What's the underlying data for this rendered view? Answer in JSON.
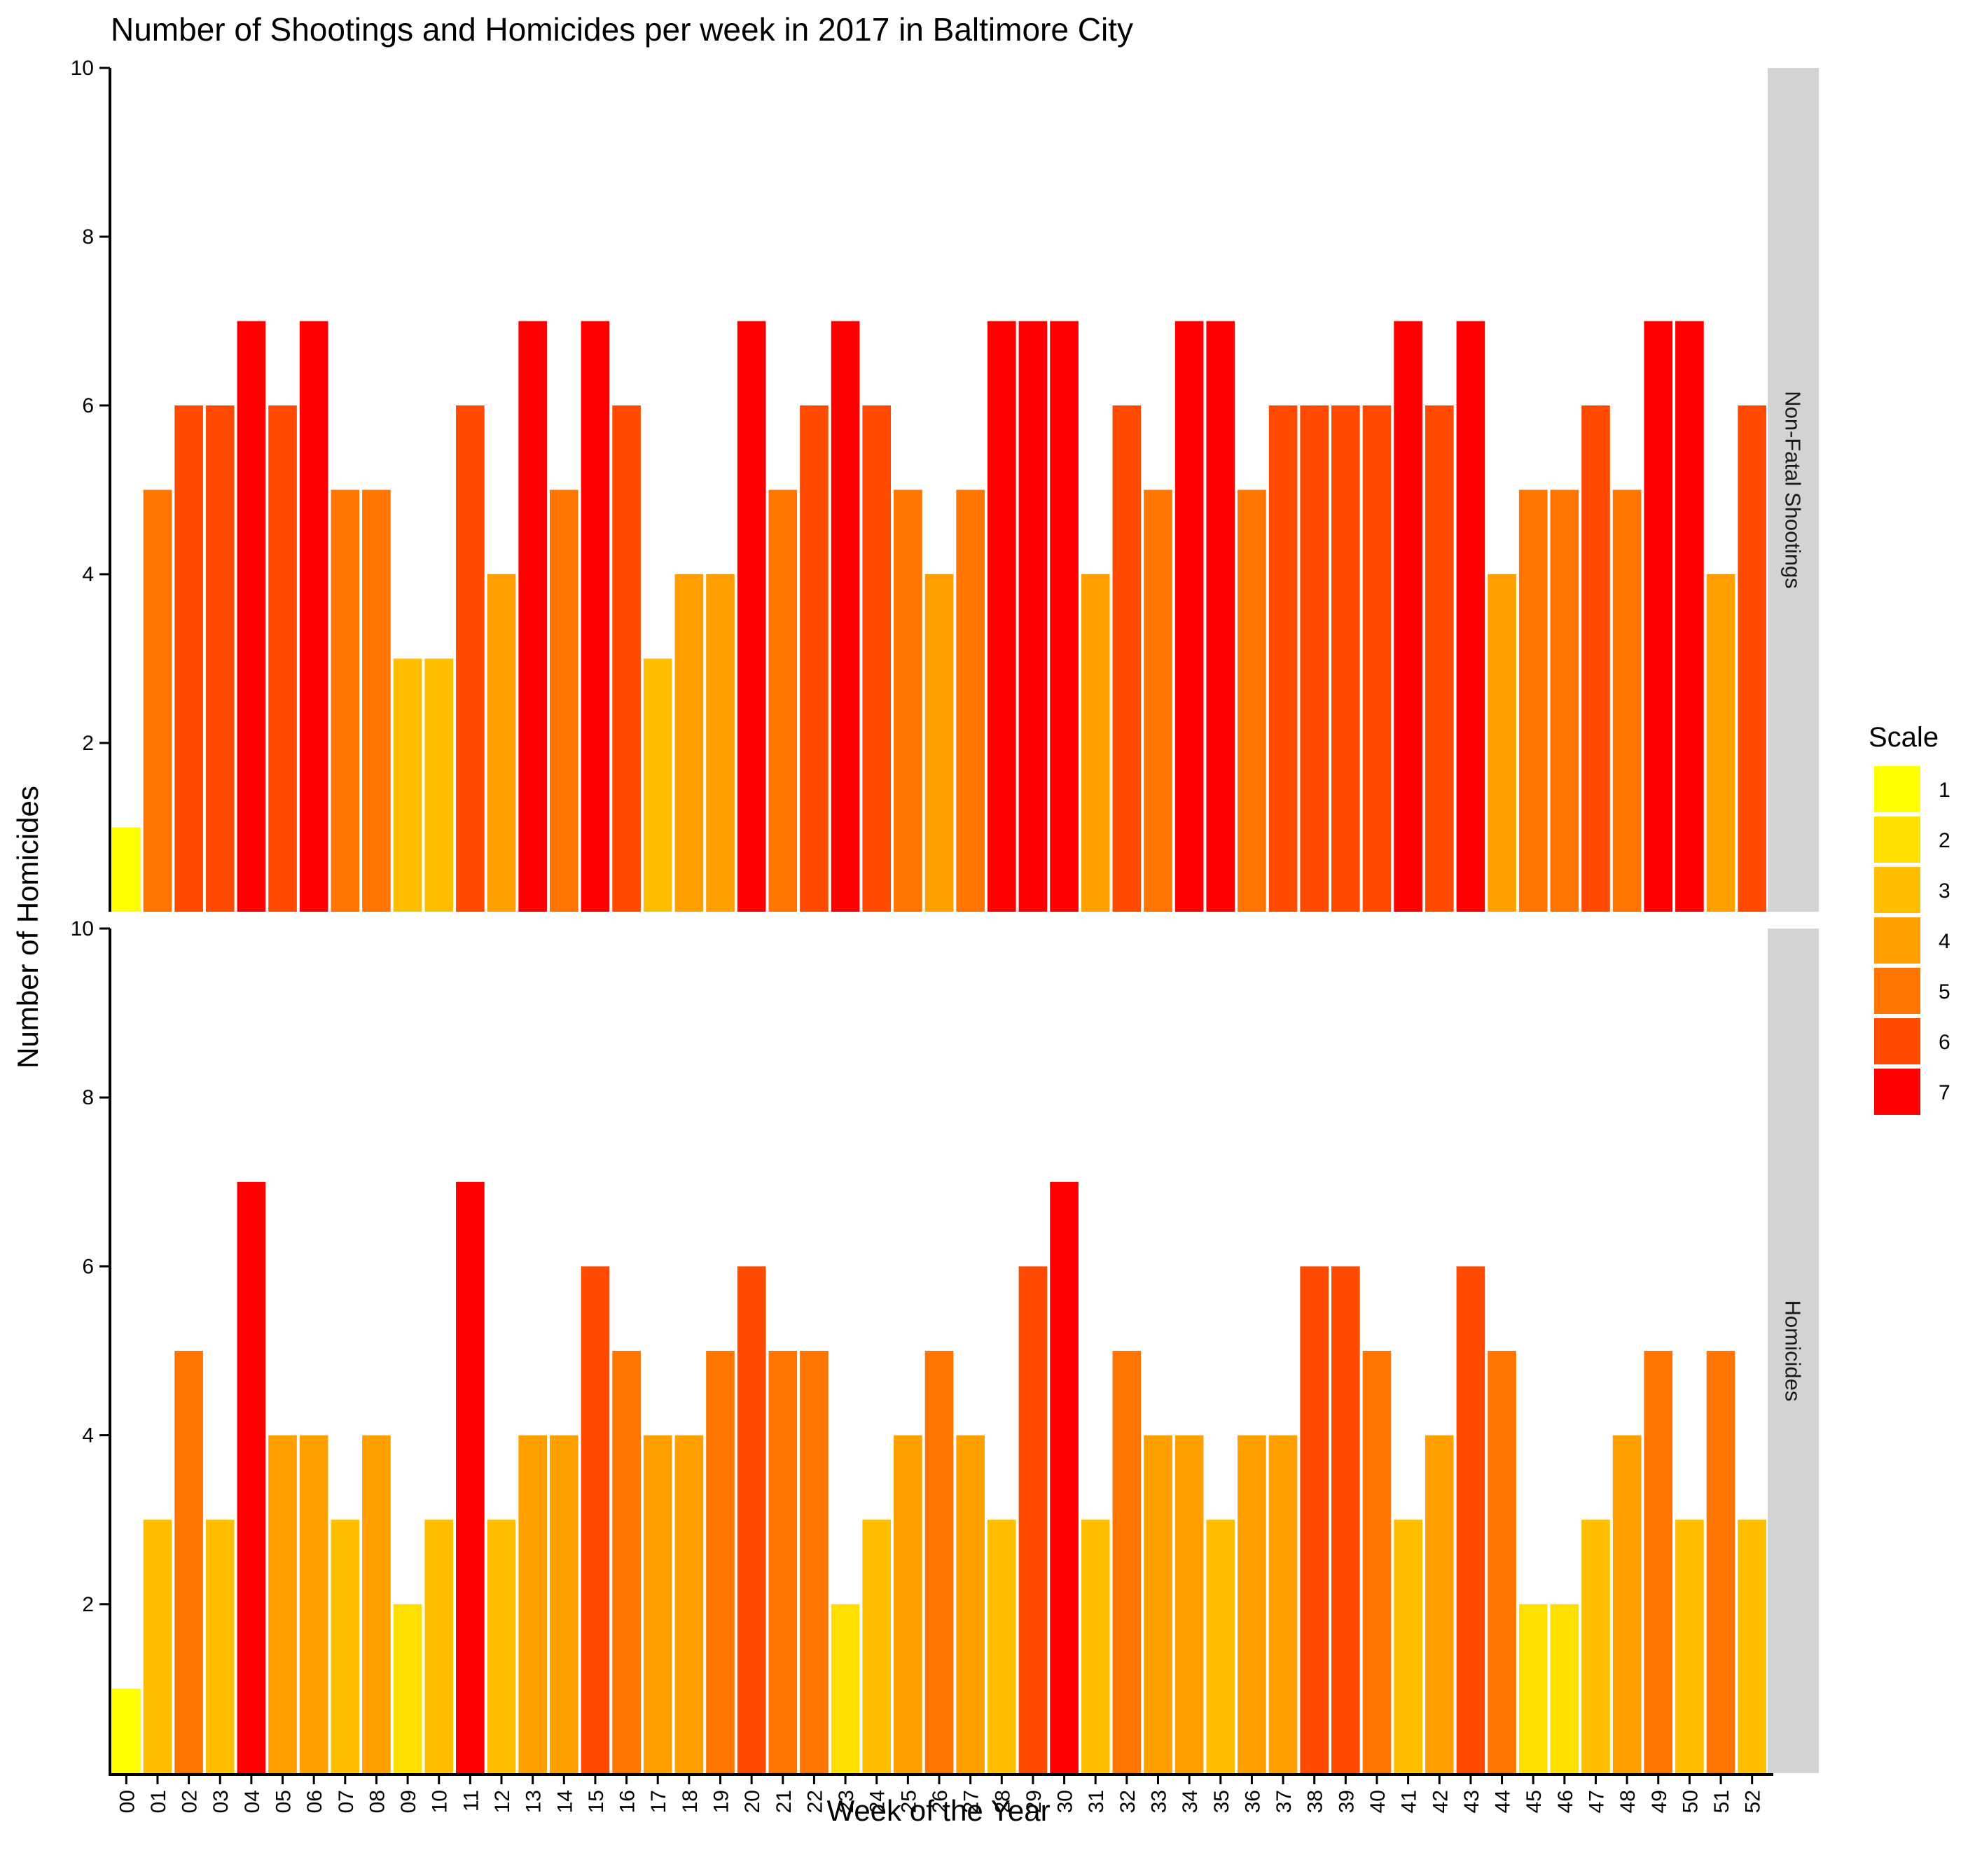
{
  "chart_data": {
    "type": "bar",
    "title": "Number of Shootings and Homicides per week in 2017 in Baltimore City",
    "xlabel": "Week of the Year",
    "ylabel": "Number of Homicides",
    "ylim": [
      0,
      10
    ],
    "yticks": [
      "2",
      "4",
      "6",
      "8",
      "10"
    ],
    "categories": [
      "00",
      "01",
      "02",
      "03",
      "04",
      "05",
      "06",
      "07",
      "08",
      "09",
      "10",
      "11",
      "12",
      "13",
      "14",
      "15",
      "16",
      "17",
      "18",
      "19",
      "20",
      "21",
      "22",
      "23",
      "24",
      "25",
      "26",
      "27",
      "28",
      "29",
      "30",
      "31",
      "32",
      "33",
      "34",
      "35",
      "36",
      "37",
      "38",
      "39",
      "40",
      "41",
      "42",
      "43",
      "44",
      "45",
      "46",
      "47",
      "48",
      "49",
      "50",
      "51",
      "52"
    ],
    "panels": [
      {
        "name": "Non-Fatal Shootings",
        "values": [
          1,
          5,
          6,
          6,
          7,
          6,
          7,
          5,
          5,
          3,
          3,
          6,
          4,
          7,
          5,
          7,
          6,
          3,
          4,
          4,
          7,
          5,
          6,
          7,
          6,
          5,
          4,
          5,
          7,
          7,
          7,
          4,
          6,
          5,
          7,
          7,
          5,
          6,
          6,
          6,
          6,
          7,
          6,
          7,
          4,
          5,
          5,
          6,
          5,
          7,
          7,
          4,
          6
        ]
      },
      {
        "name": "Homicides",
        "values": [
          1,
          3,
          5,
          3,
          7,
          4,
          4,
          3,
          4,
          2,
          3,
          7,
          3,
          4,
          4,
          6,
          5,
          4,
          4,
          5,
          6,
          5,
          5,
          2,
          3,
          4,
          5,
          4,
          3,
          6,
          7,
          3,
          5,
          4,
          4,
          3,
          4,
          4,
          6,
          6,
          5,
          3,
          4,
          6,
          5,
          2,
          2,
          3,
          4,
          5,
          3,
          5,
          3
        ]
      }
    ],
    "legend": {
      "title": "Scale",
      "position": "right",
      "items": [
        "1",
        "2",
        "3",
        "4",
        "5",
        "6",
        "7"
      ],
      "colors": [
        "#FFFF00",
        "#FFDF00",
        "#FFBF00",
        "#FF9F00",
        "#FF7500",
        "#FF4A00",
        "#FF0000"
      ]
    },
    "grid": false,
    "strip_color": "#D3D3D3"
  }
}
